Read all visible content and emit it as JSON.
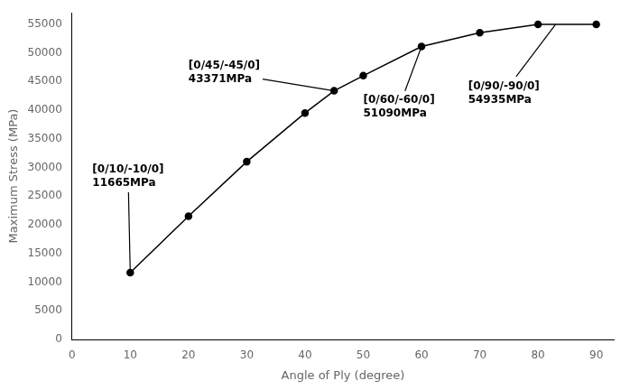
{
  "chart_data": {
    "type": "line",
    "x": [
      10,
      20,
      30,
      40,
      45,
      50,
      60,
      70,
      80,
      90
    ],
    "values": [
      11665,
      21500,
      31000,
      39500,
      43371,
      46000,
      51090,
      53500,
      54935,
      54935
    ],
    "x_label": "Angle of Ply (degree)",
    "y_label": "Maximum Stress (MPa)",
    "xlim": [
      0,
      93
    ],
    "ylim": [
      0,
      57000
    ],
    "xticks": [
      0,
      10,
      20,
      30,
      40,
      50,
      60,
      70,
      80,
      90
    ],
    "yticks": [
      0,
      5000,
      10000,
      15000,
      20000,
      25000,
      30000,
      35000,
      40000,
      45000,
      50000,
      55000
    ],
    "color": "#000000",
    "marker": "circle",
    "line_style": "solid",
    "grid": false,
    "annotations": [
      {
        "text": "[0/10/-10/0]\n11665MPa",
        "x": 10,
        "y": 11665,
        "text_x": 3.5,
        "text_y": 28500
      },
      {
        "text": "[0/45/-45/0]\n43371MPa",
        "x": 45,
        "y": 43371,
        "text_x": 20,
        "text_y": 46500
      },
      {
        "text": "[0/60/-60/0]\n51090MPa",
        "x": 60,
        "y": 51090,
        "text_x": 50,
        "text_y": 40500
      },
      {
        "text": "[0/90/-90/0]\n54935MPa",
        "x": 83,
        "y": 54935,
        "text_x": 68,
        "text_y": 43000
      }
    ]
  }
}
